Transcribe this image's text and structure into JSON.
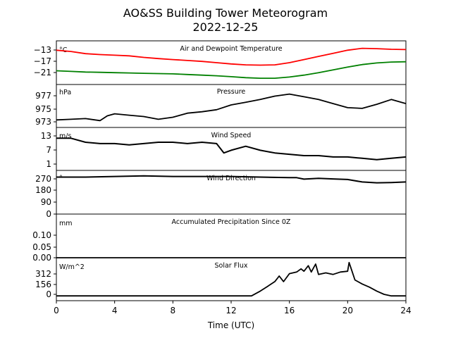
{
  "figure": {
    "title_line1": "AO&SS Building Tower Meteorogram",
    "title_line2": "2022-12-25",
    "xlabel": "Time (UTC)",
    "x_ticks": [
      "0",
      "4",
      "8",
      "12",
      "16",
      "20",
      "24"
    ]
  },
  "chart_data": [
    {
      "type": "line",
      "title": "Air and Dewpoint Temperature",
      "unit": "°C",
      "y_ticks": [
        "−13",
        "−17",
        "−21"
      ],
      "ylim": [
        -24,
        -10
      ],
      "xlim": [
        0,
        24
      ],
      "series": [
        {
          "color": "#ff0000",
          "x": [
            0,
            1,
            2,
            3,
            4,
            5,
            6,
            7,
            8,
            9,
            10,
            11,
            12,
            13,
            14,
            15,
            16,
            17,
            18,
            19,
            20,
            21,
            22,
            23,
            24
          ],
          "y": [
            -13.0,
            -13.4,
            -14.1,
            -14.4,
            -14.6,
            -14.8,
            -15.3,
            -15.7,
            -16.0,
            -16.3,
            -16.6,
            -17.0,
            -17.4,
            -17.7,
            -17.8,
            -17.7,
            -17.0,
            -16.0,
            -15.0,
            -14.0,
            -13.0,
            -12.4,
            -12.5,
            -12.7,
            -12.8
          ]
        },
        {
          "color": "#008000",
          "x": [
            0,
            1,
            2,
            3,
            4,
            5,
            6,
            7,
            8,
            9,
            10,
            11,
            12,
            13,
            14,
            15,
            16,
            17,
            18,
            19,
            20,
            21,
            22,
            23,
            24
          ],
          "y": [
            -19.6,
            -19.8,
            -20.0,
            -20.1,
            -20.2,
            -20.3,
            -20.4,
            -20.5,
            -20.6,
            -20.8,
            -21.0,
            -21.2,
            -21.5,
            -21.8,
            -22.0,
            -22.0,
            -21.6,
            -21.0,
            -20.2,
            -19.3,
            -18.4,
            -17.6,
            -17.1,
            -16.8,
            -16.7
          ]
        }
      ]
    },
    {
      "type": "line",
      "title": "Pressure",
      "unit": "hPa",
      "y_ticks": [
        "977",
        "975",
        "973"
      ],
      "ylim": [
        972.5,
        978.8
      ],
      "xlim": [
        0,
        24
      ],
      "series": [
        {
          "color": "#000000",
          "x": [
            0,
            1,
            2,
            3,
            3.5,
            4,
            5,
            6,
            7,
            8,
            9,
            10,
            11,
            12,
            13,
            14,
            15,
            16,
            17,
            18,
            19,
            20,
            21,
            22,
            23,
            24
          ],
          "y": [
            973.6,
            973.7,
            973.8,
            973.5,
            974.2,
            974.5,
            974.3,
            974.1,
            973.7,
            974.0,
            974.6,
            974.8,
            975.1,
            975.8,
            976.2,
            976.6,
            977.1,
            977.4,
            977.0,
            976.6,
            976.0,
            975.4,
            975.3,
            975.9,
            976.6,
            976.0
          ]
        }
      ]
    },
    {
      "type": "line",
      "title": "Wind Speed",
      "unit": "m/s",
      "y_ticks": [
        "13",
        "7",
        "1"
      ],
      "ylim": [
        -1,
        15
      ],
      "xlim": [
        0,
        24
      ],
      "series": [
        {
          "color": "#000000",
          "x": [
            0,
            1,
            2,
            3,
            4,
            5,
            6,
            7,
            8,
            9,
            10,
            11,
            11.5,
            12,
            13,
            14,
            15,
            16,
            17,
            18,
            19,
            20,
            21,
            22,
            23,
            24
          ],
          "y": [
            11,
            11,
            9.5,
            9,
            9,
            8.5,
            9,
            9.5,
            9.5,
            9,
            9.5,
            9,
            5.5,
            6.5,
            8,
            6.5,
            5.5,
            5,
            4.5,
            4.5,
            4,
            4,
            3.5,
            3,
            3.5,
            4
          ]
        }
      ]
    },
    {
      "type": "line",
      "title": "Wind Direction",
      "unit": "°",
      "y_ticks": [
        "270",
        "180",
        "90",
        "0"
      ],
      "ylim": [
        0,
        360
      ],
      "xlim": [
        0,
        24
      ],
      "series": [
        {
          "color": "#000000",
          "x": [
            0,
            2,
            4,
            6,
            8,
            10,
            12,
            14,
            16,
            16.5,
            17,
            18,
            19,
            20,
            21,
            22,
            23,
            24
          ],
          "y": [
            305,
            305,
            310,
            315,
            310,
            310,
            310,
            305,
            300,
            300,
            288,
            295,
            290,
            285,
            265,
            258,
            260,
            265
          ]
        }
      ]
    },
    {
      "type": "line",
      "title": "Accumulated Precipitation Since 0Z",
      "unit": "mm",
      "y_ticks": [
        "0.10",
        "0.05",
        "0.00"
      ],
      "ylim": [
        0,
        0.15
      ],
      "xlim": [
        0,
        24
      ],
      "series": [
        {
          "color": "#000000",
          "x": [
            0,
            24
          ],
          "y": [
            0,
            0
          ]
        }
      ]
    },
    {
      "type": "line",
      "title": "Solar Flux",
      "unit": "W/m^2",
      "y_ticks": [
        "312",
        "156",
        "0"
      ],
      "ylim": [
        -60,
        480
      ],
      "xlim": [
        0,
        24
      ],
      "series": [
        {
          "color": "#000000",
          "x": [
            0,
            12,
            13.4,
            14,
            14.5,
            15,
            15.3,
            15.6,
            16,
            16.5,
            16.8,
            17,
            17.3,
            17.5,
            17.8,
            18,
            18.5,
            19,
            19.5,
            20,
            20.1,
            20.5,
            21,
            21.5,
            22,
            22.5,
            23,
            24
          ],
          "y": [
            0,
            0,
            0,
            60,
            120,
            180,
            250,
            180,
            280,
            300,
            340,
            310,
            380,
            300,
            400,
            270,
            290,
            270,
            300,
            310,
            420,
            200,
            150,
            110,
            60,
            20,
            0,
            0
          ]
        }
      ]
    }
  ]
}
